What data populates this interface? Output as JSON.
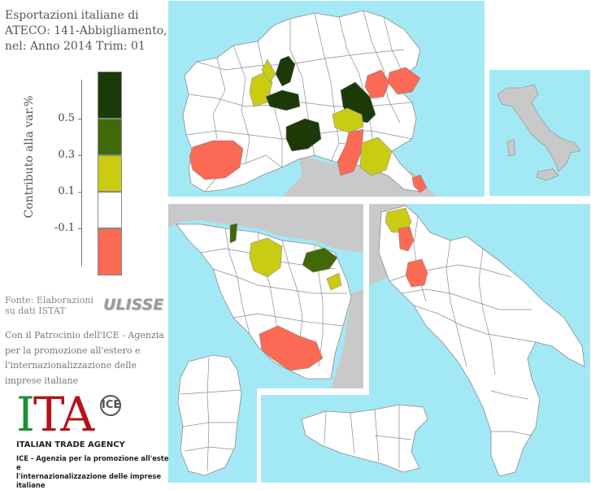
{
  "title": "Esportazioni italiane di ATECO: 141-Abbigliamento, nel: Anno 2014 Trim: 01",
  "legend": {
    "axis_label": "Contributo alla var.%",
    "ticks": [
      "0.5",
      "0.3",
      "0.1",
      "-0.1"
    ],
    "classes": [
      {
        "color": "#1b3a08",
        "label": "> 0.5"
      },
      {
        "color": "#3f6a07",
        "label": "0.3 – 0.5"
      },
      {
        "color": "#c9cc12",
        "label": "0.1 – 0.3"
      },
      {
        "color": "#ffffff",
        "label": "-0.1 – 0.1"
      },
      {
        "color": "#fa6a55",
        "label": "< -0.1"
      }
    ]
  },
  "colors": {
    "sea": "#a3e9f5",
    "land": "#ffffff",
    "foreign": "#c9c9c9",
    "border": "#8a8a8a"
  },
  "footer": {
    "source_line1": "Fonte: Elaborazioni",
    "source_line2": "su dati ISTAT",
    "ulisse_logo": "ULISSE",
    "patronage_line1": "Con il Patrocinio dell'ICE - Agenzia",
    "patronage_line2": "per la promozione all'estero e",
    "patronage_line3": "l'internazionalizzazione delle",
    "patronage_line4": "imprese italiane",
    "ita_logo_i": "I",
    "ita_logo_ta": "TA",
    "ita_mark": "ICE",
    "ita_agency": "ITALIAN TRADE AGENCY",
    "ita_desc1": "ICE - Agenzia per la promozione all'estero e",
    "ita_desc2": "l'internazionalizzazione delle imprese italiane"
  },
  "map_panels": [
    {
      "name": "nord-italia",
      "highlighted": [
        "Como/Lecco",
        "Varese",
        "Monza e Brianza",
        "Milano",
        "Bergamo",
        "Verona",
        "Vicenza",
        "Padova",
        "Treviso",
        "Torino",
        "Mantova",
        "Reggio Emilia",
        "Bologna",
        "Rimini"
      ]
    },
    {
      "name": "italia-overview"
    },
    {
      "name": "centro-italia",
      "highlighted": [
        "Prato",
        "Firenze",
        "Arezzo",
        "Perugia",
        "Ancona",
        "Roma",
        "Frosinone"
      ]
    },
    {
      "name": "sud-italia",
      "highlighted": [
        "Pescara",
        "Chieti",
        "Caserta",
        "Napoli"
      ]
    },
    {
      "name": "sardegna"
    },
    {
      "name": "sicilia"
    }
  ]
}
